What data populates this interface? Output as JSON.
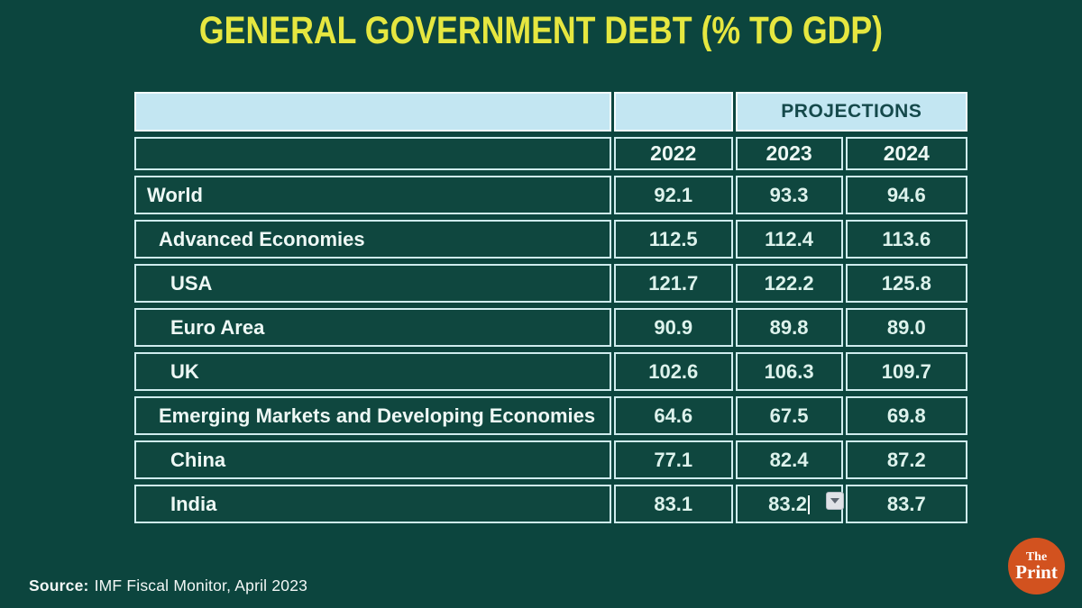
{
  "title": "GENERAL GOVERNMENT DEBT (% TO GDP)",
  "table": {
    "projections_label": "PROJECTIONS",
    "year_headers": [
      "2022",
      "2023",
      "2024"
    ],
    "rows": [
      {
        "label": "World",
        "indent": 0,
        "values": [
          "92.1",
          "93.3",
          "94.6"
        ]
      },
      {
        "label": "Advanced Economies",
        "indent": 1,
        "values": [
          "112.5",
          "112.4",
          "113.6"
        ]
      },
      {
        "label": "USA",
        "indent": 2,
        "values": [
          "121.7",
          "122.2",
          "125.8"
        ]
      },
      {
        "label": "Euro Area",
        "indent": 2,
        "values": [
          "90.9",
          "89.8",
          "89.0"
        ]
      },
      {
        "label": "UK",
        "indent": 2,
        "values": [
          "102.6",
          "106.3",
          "109.7"
        ]
      },
      {
        "label": "Emerging Markets and Developing Economies",
        "indent": 1,
        "values": [
          "64.6",
          "67.5",
          "69.8"
        ]
      },
      {
        "label": "China",
        "indent": 2,
        "values": [
          "77.1",
          "82.4",
          "87.2"
        ]
      },
      {
        "label": "India",
        "indent": 2,
        "values": [
          "83.1",
          "83.2",
          "83.7"
        ]
      }
    ],
    "editing": {
      "row_index": 7,
      "value_index": 1,
      "cursor_visible": true
    }
  },
  "chart_data": {
    "type": "table",
    "title": "GENERAL GOVERNMENT DEBT (% TO GDP)",
    "columns": [
      "2022",
      "2023",
      "2024"
    ],
    "column_groups": [
      {
        "label": "PROJECTIONS",
        "columns": [
          "2023",
          "2024"
        ]
      }
    ],
    "rows": [
      {
        "label": "World",
        "values": [
          92.1,
          93.3,
          94.6
        ]
      },
      {
        "label": "Advanced Economies",
        "values": [
          112.5,
          112.4,
          113.6
        ]
      },
      {
        "label": "USA",
        "values": [
          121.7,
          122.2,
          125.8
        ]
      },
      {
        "label": "Euro Area",
        "values": [
          90.9,
          89.8,
          89.0
        ]
      },
      {
        "label": "UK",
        "values": [
          102.6,
          106.3,
          109.7
        ]
      },
      {
        "label": "Emerging Markets and Developing Economies",
        "values": [
          64.6,
          67.5,
          69.8
        ]
      },
      {
        "label": "China",
        "values": [
          77.1,
          82.4,
          87.2
        ]
      },
      {
        "label": "India",
        "values": [
          83.1,
          83.2,
          83.7
        ]
      }
    ],
    "source": "IMF Fiscal Monitor, April 2023",
    "unit": "% of GDP"
  },
  "source": {
    "label": "Source:",
    "text": "IMF Fiscal Monitor, April 2023"
  },
  "logo": {
    "line1": "The",
    "line2": "Print"
  },
  "colors": {
    "background": "#0c453e",
    "cell_background": "#0f473f",
    "cell_border": "#cfecee",
    "header_blue": "#c3e6f2",
    "title_yellow": "#e6e740",
    "table_text": "#e9f6f2",
    "projections_text": "#15494b",
    "logo_orange": "#d2521f"
  }
}
